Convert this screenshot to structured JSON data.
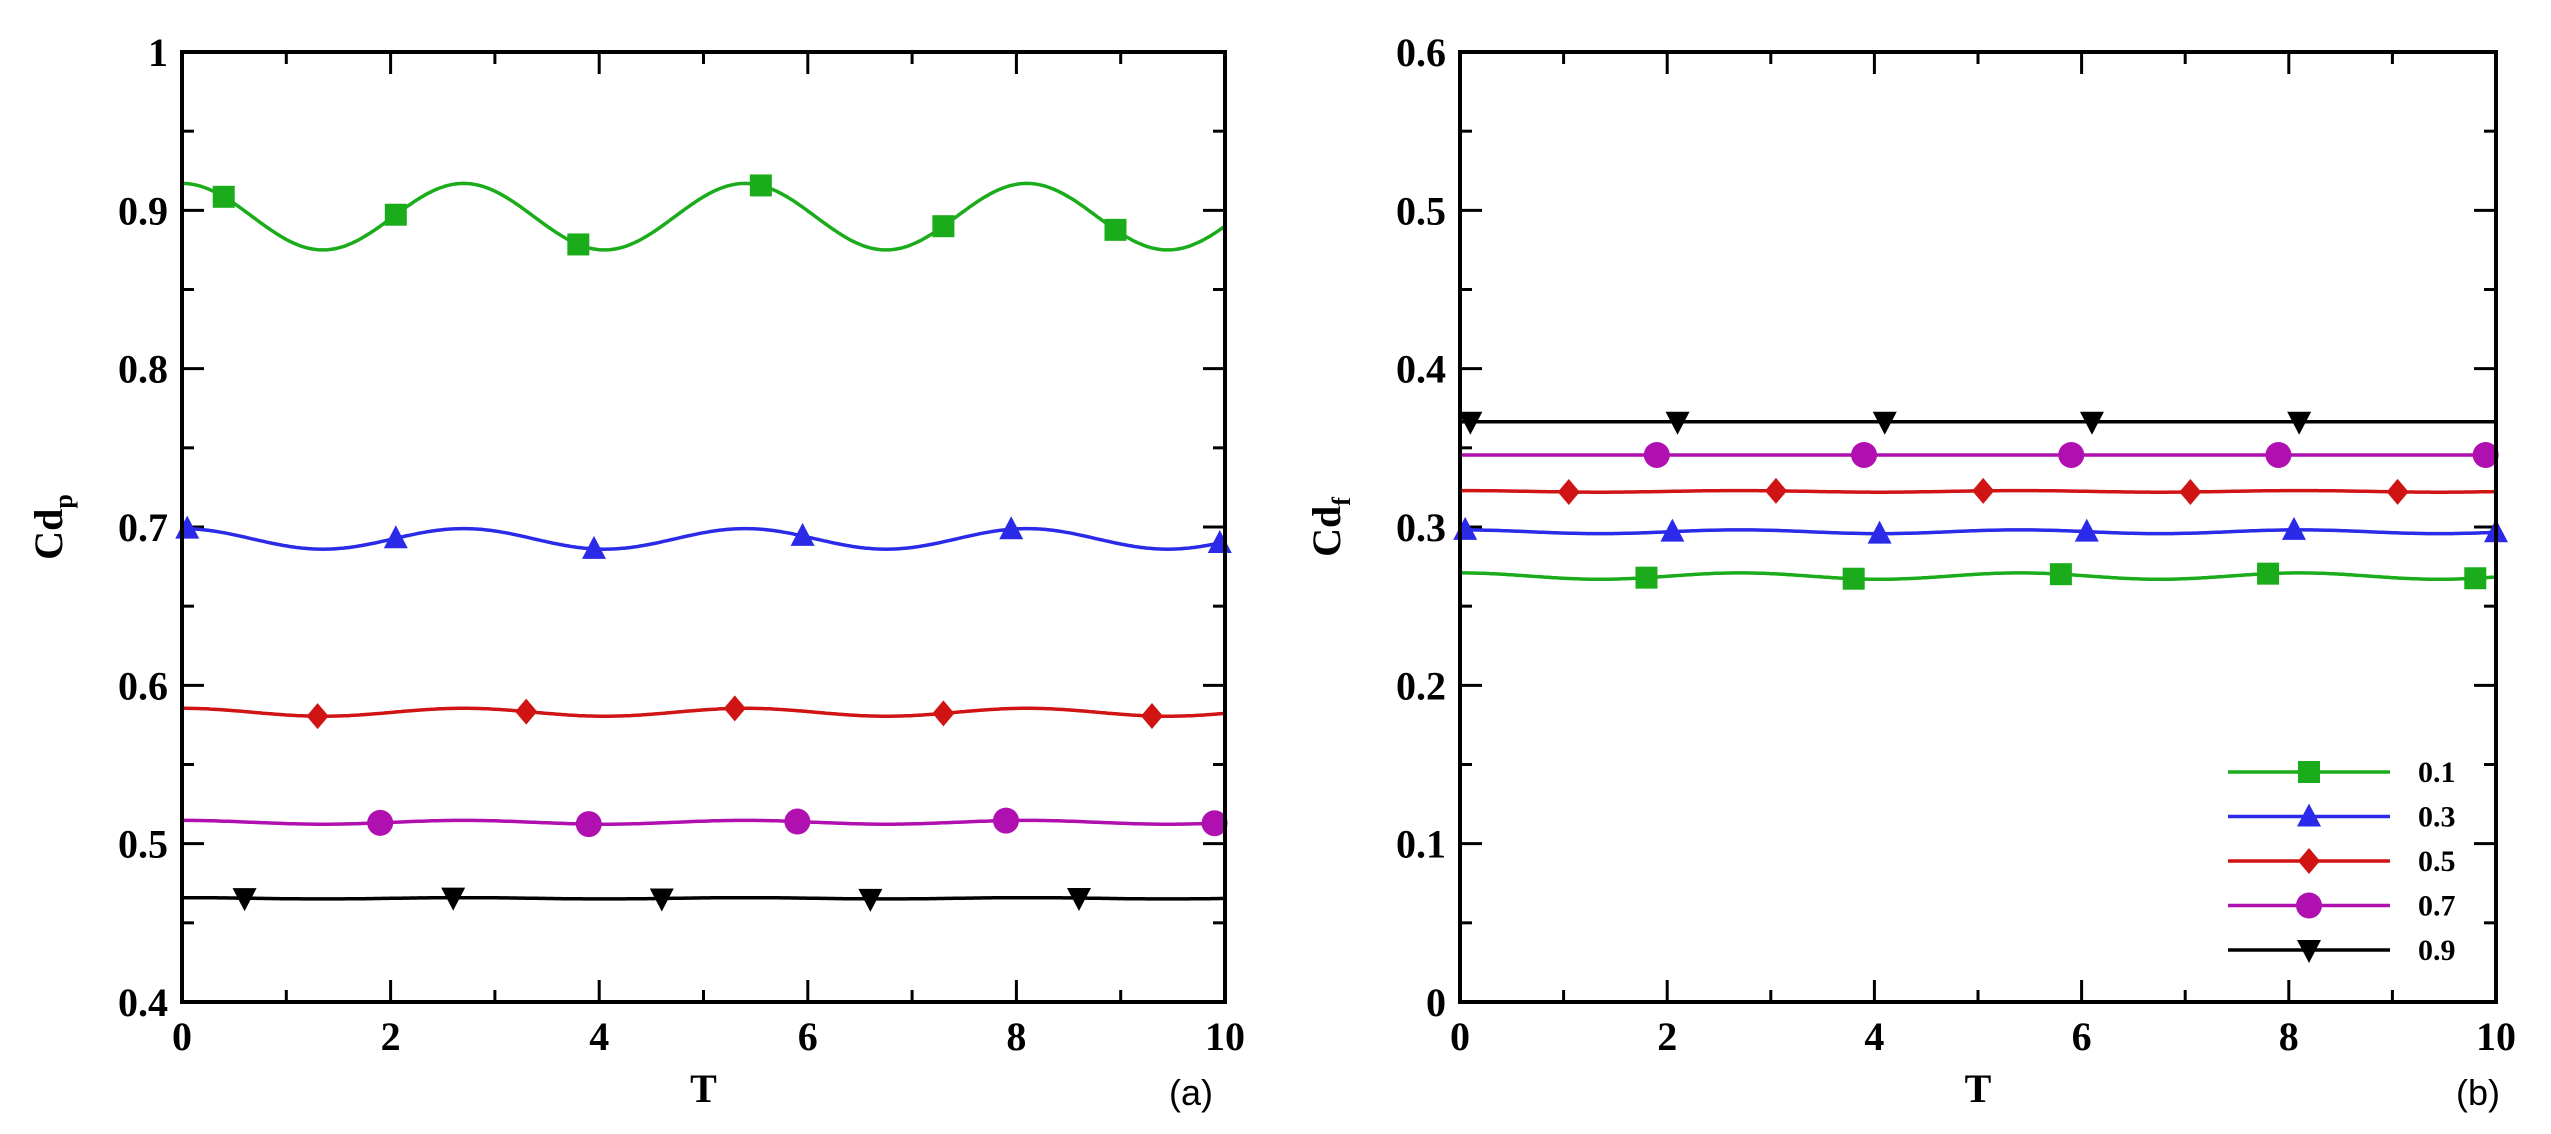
{
  "chart_data": [
    {
      "type": "line",
      "panel_label": "(a)",
      "xlabel": "T",
      "ylabel_main": "Cd",
      "ylabel_sub": "p",
      "xlim": [
        0,
        10
      ],
      "ylim": [
        0.4,
        1.0
      ],
      "xticks": [
        "0",
        "2",
        "4",
        "6",
        "8",
        "10"
      ],
      "yticks": [
        "0.4",
        "0.5",
        "0.6",
        "0.7",
        "0.8",
        "0.9",
        "1"
      ],
      "series": [
        {
          "name": "0.1",
          "color": "#1aac1a",
          "marker": "square",
          "mean": 0.896,
          "amp": 0.021,
          "period": 2.7,
          "phase": 0.0,
          "marker_x": [
            0.4,
            2.05,
            3.8,
            5.55,
            7.3,
            8.95
          ]
        },
        {
          "name": "0.3",
          "color": "#2a2ae8",
          "marker": "triangle-up",
          "mean": 0.6925,
          "amp": 0.0065,
          "period": 2.7,
          "phase": 0.0,
          "marker_x": [
            0.05,
            2.05,
            3.95,
            5.95,
            7.95,
            9.95
          ]
        },
        {
          "name": "0.5",
          "color": "#d01414",
          "marker": "diamond",
          "mean": 0.583,
          "amp": 0.0025,
          "period": 2.7,
          "phase": 0.0,
          "marker_x": [
            1.3,
            3.3,
            5.3,
            7.3,
            9.3
          ]
        },
        {
          "name": "0.7",
          "color": "#b010b0",
          "marker": "circle",
          "mean": 0.5135,
          "amp": 0.0012,
          "period": 2.7,
          "phase": 0.0,
          "marker_x": [
            1.9,
            3.9,
            5.9,
            7.9,
            9.9
          ]
        },
        {
          "name": "0.9",
          "color": "#000000",
          "marker": "triangle-down",
          "mean": 0.4655,
          "amp": 0.0004,
          "period": 2.7,
          "phase": 0.0,
          "marker_x": [
            0.6,
            2.6,
            4.6,
            6.6,
            8.6
          ]
        }
      ]
    },
    {
      "type": "line",
      "panel_label": "(b)",
      "xlabel": "T",
      "ylabel_main": "Cd",
      "ylabel_sub": "f",
      "xlim": [
        0,
        10
      ],
      "ylim": [
        0,
        0.6
      ],
      "xticks": [
        "0",
        "2",
        "4",
        "6",
        "8",
        "10"
      ],
      "yticks": [
        "0",
        "0.1",
        "0.2",
        "0.3",
        "0.4",
        "0.5",
        "0.6"
      ],
      "legend": {
        "position": "bottom-right"
      },
      "series": [
        {
          "name": "0.1",
          "color": "#1aac1a",
          "marker": "square",
          "mean": 0.269,
          "amp": 0.002,
          "period": 2.7,
          "phase": 0.0,
          "marker_x": [
            1.8,
            3.8,
            5.8,
            7.8,
            9.8
          ]
        },
        {
          "name": "0.3",
          "color": "#2a2ae8",
          "marker": "triangle-up",
          "mean": 0.297,
          "amp": 0.0012,
          "period": 2.7,
          "phase": 0.0,
          "marker_x": [
            0.05,
            2.05,
            4.05,
            6.05,
            8.05,
            10.0
          ]
        },
        {
          "name": "0.5",
          "color": "#d01414",
          "marker": "diamond",
          "mean": 0.3225,
          "amp": 0.0005,
          "period": 2.7,
          "phase": 0.0,
          "marker_x": [
            1.05,
            3.05,
            5.05,
            7.05,
            9.05
          ]
        },
        {
          "name": "0.7",
          "color": "#b010b0",
          "marker": "circle",
          "mean": 0.3455,
          "amp": 0.0,
          "period": 2.7,
          "phase": 0.0,
          "marker_x": [
            1.9,
            3.9,
            5.9,
            7.9,
            9.9
          ]
        },
        {
          "name": "0.9",
          "color": "#000000",
          "marker": "triangle-down",
          "mean": 0.3665,
          "amp": 0.0,
          "period": 2.7,
          "phase": 0.0,
          "marker_x": [
            0.1,
            2.1,
            4.1,
            6.1,
            8.1
          ]
        }
      ]
    }
  ]
}
